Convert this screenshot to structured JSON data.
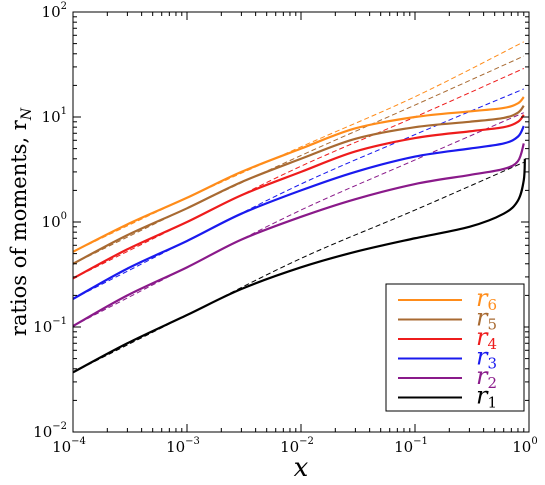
{
  "chart_data": {
    "type": "line",
    "title": "",
    "xlabel": "x",
    "ylabel": "ratios of moments, r",
    "ylabel_subscript": "N",
    "x_scale": "log",
    "y_scale": "log",
    "xlim": [
      0.0001,
      1
    ],
    "ylim": [
      0.01,
      100
    ],
    "grid": false,
    "legend_position": "bottom-right",
    "x_ticks": [
      {
        "base": "10",
        "exp": "−4",
        "value": 0.0001
      },
      {
        "base": "10",
        "exp": "−3",
        "value": 0.001
      },
      {
        "base": "10",
        "exp": "−2",
        "value": 0.01
      },
      {
        "base": "10",
        "exp": "−1",
        "value": 0.1
      },
      {
        "base": "10",
        "exp": "0",
        "value": 1
      }
    ],
    "y_ticks": [
      {
        "base": "10",
        "exp": "−2",
        "value": 0.01
      },
      {
        "base": "10",
        "exp": "−1",
        "value": 0.1
      },
      {
        "base": "10",
        "exp": "0",
        "value": 1
      },
      {
        "base": "10",
        "exp": "1",
        "value": 10
      },
      {
        "base": "10",
        "exp": "2",
        "value": 100
      }
    ],
    "series": [
      {
        "name": "r",
        "subscript": "6",
        "color": "#ff8c1a",
        "solid": {
          "x": [
            0.0001,
            0.0003,
            0.001,
            0.003,
            0.01,
            0.03,
            0.1,
            0.3,
            0.6,
            0.8,
            0.9
          ],
          "y": [
            0.52,
            0.95,
            1.7,
            3.0,
            5.0,
            7.8,
            10.0,
            11.3,
            12.2,
            13.5,
            15.5
          ]
        },
        "dashed": {
          "x": [
            0.0001,
            0.001,
            0.01,
            0.1,
            0.9
          ],
          "y": [
            0.52,
            1.7,
            5.2,
            15.6,
            52
          ]
        }
      },
      {
        "name": "r",
        "subscript": "5",
        "color": "#a86a32",
        "solid": {
          "x": [
            0.0001,
            0.0003,
            0.001,
            0.003,
            0.01,
            0.03,
            0.1,
            0.3,
            0.6,
            0.8,
            0.9
          ],
          "y": [
            0.4,
            0.75,
            1.35,
            2.4,
            4.0,
            6.2,
            8.0,
            9.0,
            9.8,
            11.0,
            12.8
          ]
        },
        "dashed": {
          "x": [
            0.0001,
            0.001,
            0.01,
            0.1,
            0.9
          ],
          "y": [
            0.4,
            1.35,
            4.3,
            13.0,
            38
          ]
        }
      },
      {
        "name": "r",
        "subscript": "4",
        "color": "#ee1c1c",
        "solid": {
          "x": [
            0.0001,
            0.0003,
            0.001,
            0.003,
            0.01,
            0.03,
            0.1,
            0.3,
            0.6,
            0.8,
            0.9
          ],
          "y": [
            0.29,
            0.55,
            1.0,
            1.8,
            3.0,
            4.7,
            6.3,
            7.3,
            8.0,
            9.0,
            10.5
          ]
        },
        "dashed": {
          "x": [
            0.0001,
            0.001,
            0.01,
            0.1,
            0.9
          ],
          "y": [
            0.29,
            1.0,
            3.4,
            10.0,
            29
          ]
        }
      },
      {
        "name": "r",
        "subscript": "3",
        "color": "#1a1aee",
        "solid": {
          "x": [
            0.0001,
            0.0003,
            0.001,
            0.003,
            0.01,
            0.03,
            0.1,
            0.3,
            0.6,
            0.8,
            0.9
          ],
          "y": [
            0.185,
            0.36,
            0.66,
            1.2,
            2.0,
            3.0,
            4.2,
            5.0,
            5.6,
            6.5,
            8.2
          ]
        },
        "dashed": {
          "x": [
            0.0001,
            0.001,
            0.01,
            0.1,
            0.9
          ],
          "y": [
            0.185,
            0.66,
            2.3,
            6.8,
            18.5
          ]
        }
      },
      {
        "name": "r",
        "subscript": "2",
        "color": "#8a1a8a",
        "solid": {
          "x": [
            0.0001,
            0.0003,
            0.001,
            0.003,
            0.01,
            0.03,
            0.1,
            0.3,
            0.6,
            0.8,
            0.9
          ],
          "y": [
            0.102,
            0.2,
            0.37,
            0.68,
            1.12,
            1.65,
            2.3,
            2.8,
            3.2,
            3.8,
            5.6
          ]
        },
        "dashed": {
          "x": [
            0.0001,
            0.001,
            0.01,
            0.1,
            0.9
          ],
          "y": [
            0.102,
            0.37,
            1.3,
            3.9,
            11
          ]
        }
      },
      {
        "name": "r",
        "subscript": "1",
        "color": "#000000",
        "solid": {
          "x": [
            0.0001,
            0.0003,
            0.001,
            0.003,
            0.01,
            0.03,
            0.1,
            0.3,
            0.6,
            0.8,
            0.9,
            0.92
          ],
          "y": [
            0.037,
            0.07,
            0.13,
            0.23,
            0.37,
            0.52,
            0.7,
            0.9,
            1.2,
            1.6,
            2.5,
            4.0
          ]
        },
        "dashed": {
          "x": [
            0.0001,
            0.001,
            0.01,
            0.1,
            0.9
          ],
          "y": [
            0.037,
            0.13,
            0.45,
            1.3,
            3.7
          ]
        }
      }
    ]
  }
}
